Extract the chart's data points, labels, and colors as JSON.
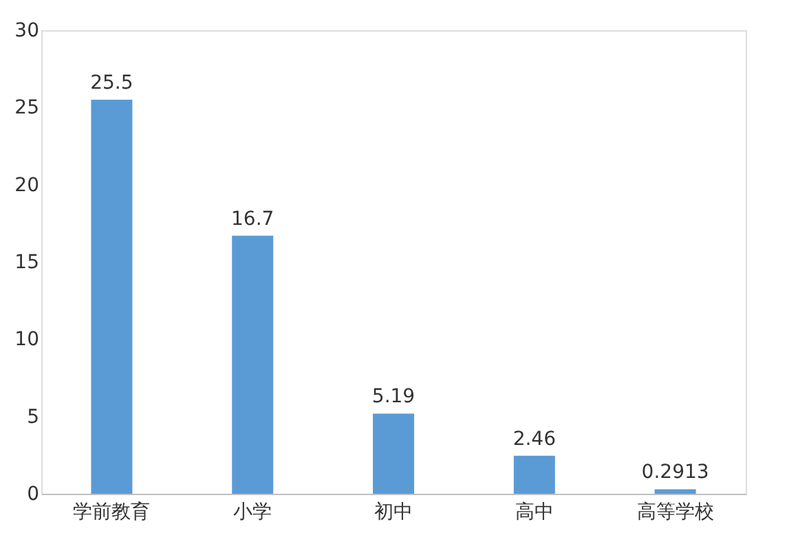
{
  "chart_data": {
    "type": "bar",
    "categories": [
      "学前教育",
      "小学",
      "初中",
      "高中",
      "高等学校"
    ],
    "values": [
      25.5,
      16.7,
      5.19,
      2.46,
      0.2913
    ],
    "color": "#5b9bd5",
    "ylim": [
      0,
      30
    ],
    "yticks": [
      0,
      5,
      10,
      15,
      20,
      25,
      30
    ],
    "grid": false,
    "data_labels": true
  }
}
